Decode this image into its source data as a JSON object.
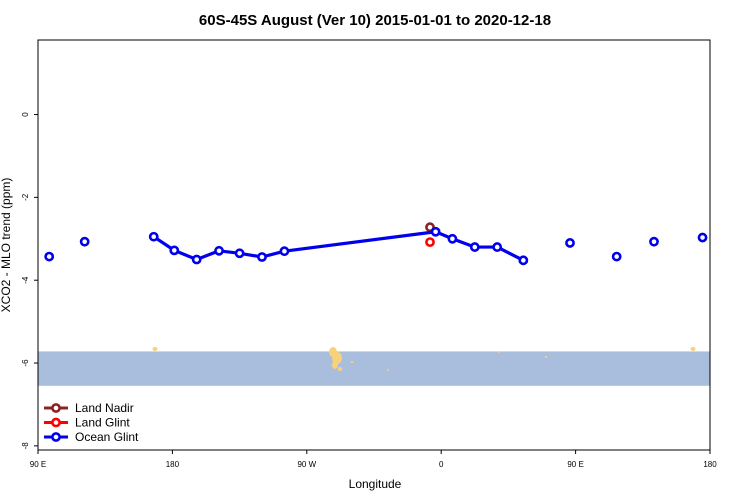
{
  "chart_data": {
    "type": "line",
    "title": "60S-45S August (Ver 10)   2015-01-01 to 2020-12-18",
    "xlabel": "Longitude",
    "ylabel": "XCO2 - MLO trend (ppm)",
    "xlim": [
      90,
      450
    ],
    "ylim": [
      -8.1,
      1.8
    ],
    "x_ticks": [
      {
        "value": 90,
        "label": "90 E"
      },
      {
        "value": 180,
        "label": "180"
      },
      {
        "value": 270,
        "label": "90 W"
      },
      {
        "value": 360,
        "label": "0"
      },
      {
        "value": 450,
        "label": "90 E"
      },
      {
        "value": 540,
        "label": "180"
      }
    ],
    "x_axis_extent": [
      90,
      540
    ],
    "y_ticks": [
      {
        "value": 0,
        "label": "0"
      },
      {
        "value": -2,
        "label": "-2"
      },
      {
        "value": -4,
        "label": "-4"
      },
      {
        "value": -6,
        "label": "-6"
      },
      {
        "value": -8,
        "label": "-8"
      }
    ],
    "grid": false,
    "legend_position": "bottom-left",
    "map_band": {
      "y_range": [
        -6.55,
        -5.72
      ],
      "water_color": "#a9bedc",
      "land_color": "#f7d27a"
    },
    "series": [
      {
        "name": "Land Nadir",
        "color": "#8b2323",
        "points": [
          {
            "x": 300,
            "y": -2.72,
            "connect": false
          }
        ]
      },
      {
        "name": "Land Glint",
        "color": "#ff0000",
        "points": [
          {
            "x": 300,
            "y": -3.08,
            "connect": false
          }
        ]
      },
      {
        "name": "Ocean Glint",
        "color": "#0000ee",
        "points": [
          {
            "x": 96,
            "y": -3.43,
            "connect": false
          },
          {
            "x": 115,
            "y": -3.07,
            "connect": false
          },
          {
            "x": 152,
            "y": -2.95,
            "connect": true
          },
          {
            "x": 163,
            "y": -3.28,
            "connect": true
          },
          {
            "x": 175,
            "y": -3.5,
            "connect": true
          },
          {
            "x": 187,
            "y": -3.29,
            "connect": true
          },
          {
            "x": 198,
            "y": -3.35,
            "connect": true
          },
          {
            "x": 210,
            "y": -3.44,
            "connect": true
          },
          {
            "x": 222,
            "y": -3.3,
            "connect": true
          },
          {
            "x": 303,
            "y": -2.83,
            "connect": true
          },
          {
            "x": 312,
            "y": -3.0,
            "connect": true
          },
          {
            "x": 324,
            "y": -3.2,
            "connect": true
          },
          {
            "x": 336,
            "y": -3.2,
            "connect": true
          },
          {
            "x": 350,
            "y": -3.52,
            "connect": true
          },
          {
            "x": 375,
            "y": -3.1,
            "connect": false
          },
          {
            "x": 400,
            "y": -3.43,
            "connect": false
          },
          {
            "x": 420,
            "y": -3.07,
            "connect": false
          },
          {
            "x": 446,
            "y": -2.97,
            "connect": false
          }
        ]
      }
    ]
  }
}
